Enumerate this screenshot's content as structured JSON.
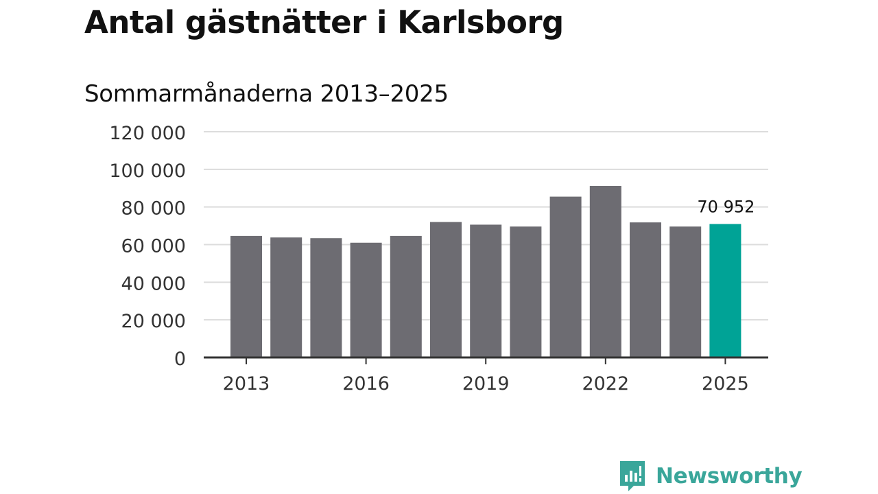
{
  "title": "Antal gästnätter i Karlsborg",
  "subtitle": "Sommarmånaderna 2013–2025",
  "brand": {
    "name": "Newsworthy",
    "icon": "newsworthy-logo-icon",
    "color": "#3aa69a"
  },
  "chart_data": {
    "type": "bar",
    "categories": [
      "2013",
      "2014",
      "2015",
      "2016",
      "2017",
      "2018",
      "2019",
      "2020",
      "2021",
      "2022",
      "2023",
      "2024",
      "2025"
    ],
    "values": [
      64600,
      63800,
      63400,
      61000,
      64600,
      72000,
      70600,
      69600,
      85500,
      91200,
      71800,
      69600,
      70952
    ],
    "ylim": [
      0,
      120000
    ],
    "yticks": [
      0,
      20000,
      40000,
      60000,
      80000,
      100000,
      120000
    ],
    "ytick_labels": [
      "0",
      "20 000",
      "40 000",
      "60 000",
      "80 000",
      "100 000",
      "120 000"
    ],
    "xtick_labels": [
      "2013",
      "2016",
      "2019",
      "2022",
      "2025"
    ],
    "xtick_years": [
      "2013",
      "2016",
      "2019",
      "2022",
      "2025"
    ],
    "highlight": {
      "category": "2025",
      "label": "70 952"
    },
    "colors": {
      "bar": "#6d6c72",
      "highlight": "#00a396",
      "grid": "#dcdcdc",
      "axis": "#333333"
    },
    "grid": true
  }
}
